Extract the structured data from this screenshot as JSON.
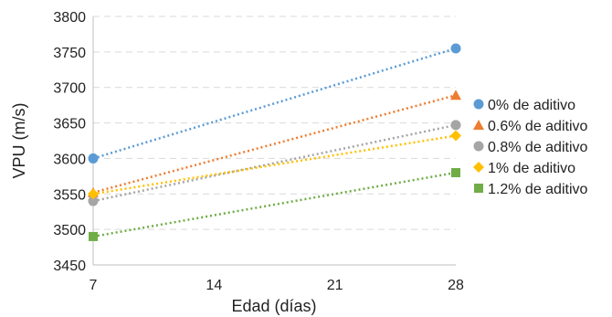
{
  "chart_data": {
    "type": "line",
    "title": "",
    "xlabel": "Edad (días)",
    "ylabel": "VPU (m/s)",
    "x_ticks": [
      7,
      14,
      21,
      28
    ],
    "xlim": [
      7,
      28
    ],
    "ylim": [
      3450,
      3800
    ],
    "y_ticks": [
      3450,
      3500,
      3550,
      3600,
      3650,
      3700,
      3750,
      3800
    ],
    "grid": "horizontal dashed",
    "legend_position": "right",
    "line_style": "dotted",
    "series": [
      {
        "name": "0% de aditivo",
        "marker": "circle",
        "color": "#5b9bd5",
        "x": [
          7,
          28
        ],
        "y": [
          3600,
          3755
        ]
      },
      {
        "name": "0.6% de aditivo",
        "marker": "triangle",
        "color": "#ed7d31",
        "x": [
          7,
          28
        ],
        "y": [
          3552,
          3689
        ]
      },
      {
        "name": "0.8% de aditivo",
        "marker": "circle",
        "color": "#a5a5a5",
        "x": [
          7,
          28
        ],
        "y": [
          3540,
          3647
        ]
      },
      {
        "name": "1% de aditivo",
        "marker": "diamond",
        "color": "#ffc000",
        "x": [
          7,
          28
        ],
        "y": [
          3550,
          3632
        ]
      },
      {
        "name": "1.2% de aditivo",
        "marker": "square",
        "color": "#70ad47",
        "x": [
          7,
          28
        ],
        "y": [
          3490,
          3580
        ]
      }
    ]
  }
}
